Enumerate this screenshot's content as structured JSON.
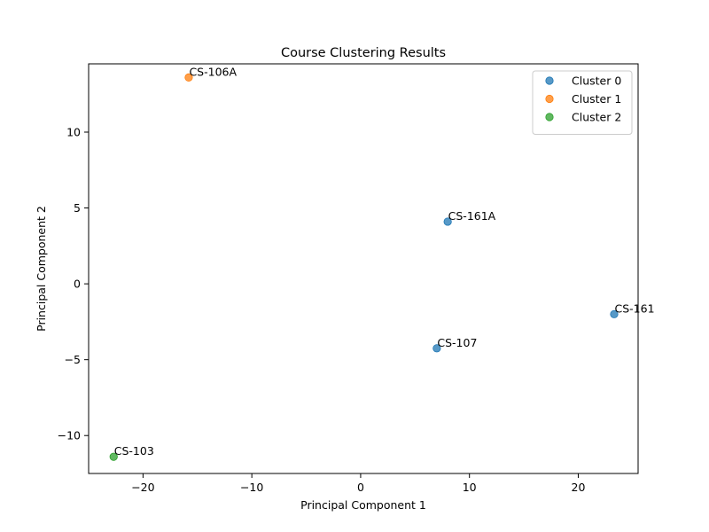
{
  "chart_data": {
    "type": "scatter",
    "title": "Course Clustering Results",
    "xlabel": "Principal Component 1",
    "ylabel": "Principal Component 2",
    "xlim": [
      -25,
      25.5
    ],
    "ylim": [
      -12.5,
      14.5
    ],
    "xticks": [
      -20,
      -10,
      0,
      10,
      20
    ],
    "yticks": [
      -10,
      -5,
      0,
      5,
      10
    ],
    "grid": false,
    "legend_position": "top-right",
    "series": [
      {
        "name": "Cluster 0",
        "color": "#1f77b4",
        "points": [
          {
            "label": "CS-161A",
            "x": 8.0,
            "y": 4.1
          },
          {
            "label": "CS-161",
            "x": 23.3,
            "y": -2.0
          },
          {
            "label": "CS-107",
            "x": 7.0,
            "y": -4.25
          }
        ]
      },
      {
        "name": "Cluster 1",
        "color": "#ff7f0e",
        "points": [
          {
            "label": "CS-106A",
            "x": -15.8,
            "y": 13.6
          }
        ]
      },
      {
        "name": "Cluster 2",
        "color": "#2ca02c",
        "points": [
          {
            "label": "CS-103",
            "x": -22.7,
            "y": -11.4
          }
        ]
      }
    ]
  }
}
